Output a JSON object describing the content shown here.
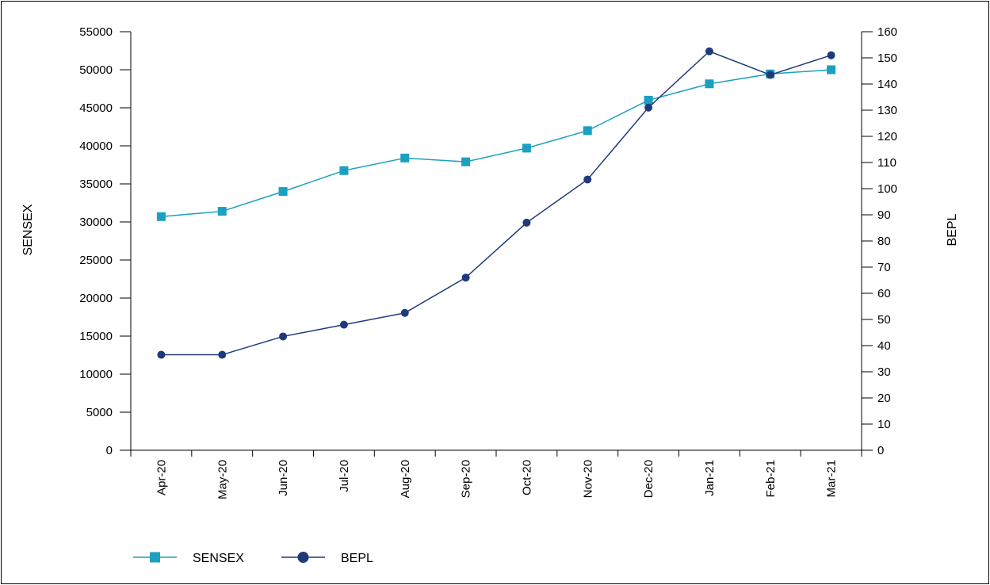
{
  "chart_data": {
    "type": "line",
    "title": "",
    "categories": [
      "Apr-20",
      "May-20",
      "Jun-20",
      "Jul-20",
      "Aug-20",
      "Sep-20",
      "Oct-20",
      "Nov-20",
      "Dec-20",
      "Jan-21",
      "Feb-21",
      "Mar-21"
    ],
    "y_left": {
      "label": "SENSEX",
      "min": 0,
      "max": 55000,
      "step": 5000,
      "ticks": [
        "0",
        "5000",
        "10000",
        "15000",
        "20000",
        "25000",
        "30000",
        "35000",
        "40000",
        "45000",
        "50000",
        "55000"
      ]
    },
    "y_right": {
      "label": "BEPL",
      "min": 0,
      "max": 160,
      "step": 10,
      "ticks": [
        "0",
        "10",
        "20",
        "30",
        "40",
        "50",
        "60",
        "70",
        "80",
        "90",
        "100",
        "110",
        "120",
        "130",
        "140",
        "150",
        "160"
      ]
    },
    "series": [
      {
        "name": "SENSEX",
        "axis": "left",
        "marker": "square",
        "color": "#1aa0c0",
        "values": [
          30700,
          31400,
          34000,
          36750,
          38400,
          37900,
          39700,
          42000,
          46000,
          48150,
          49450,
          50000
        ]
      },
      {
        "name": "BEPL",
        "axis": "right",
        "marker": "circle",
        "color": "#1f3a7a",
        "values": [
          36.5,
          36.5,
          43.5,
          48,
          52.5,
          66,
          87,
          103.5,
          131,
          152.5,
          143.5,
          151
        ]
      }
    ],
    "grid": false,
    "legend_position": "bottom-left"
  }
}
